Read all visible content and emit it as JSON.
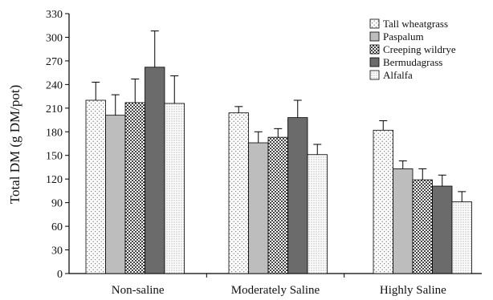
{
  "chart_data": {
    "type": "bar",
    "title": "",
    "xlabel": "",
    "ylabel": "Total DM (g DM/pot)",
    "ylim": [
      0,
      330
    ],
    "yticks": [
      0,
      30,
      60,
      90,
      120,
      150,
      180,
      210,
      240,
      270,
      300,
      330
    ],
    "categories": [
      "Non-saline",
      "Moderately Saline",
      "Highly Saline"
    ],
    "legend_position": "top-right",
    "grid": false,
    "series": [
      {
        "name": "Tall wheatgrass",
        "pattern": "dots-sparse",
        "values": [
          220,
          204,
          182
        ],
        "errors": [
          23,
          8,
          12
        ]
      },
      {
        "name": "Paspalum",
        "pattern": "light-gray",
        "values": [
          201,
          166,
          133
        ],
        "errors": [
          26,
          14,
          10
        ]
      },
      {
        "name": "Creeping wildrye",
        "pattern": "checker",
        "values": [
          217,
          173,
          119
        ],
        "errors": [
          30,
          11,
          14
        ]
      },
      {
        "name": "Bermudagrass",
        "pattern": "dark-gray",
        "values": [
          262,
          198,
          111
        ],
        "errors": [
          46,
          22,
          14
        ]
      },
      {
        "name": "Alfalfa",
        "pattern": "dots-fine",
        "values": [
          216,
          151,
          91
        ],
        "errors": [
          35,
          13,
          13
        ]
      }
    ]
  }
}
